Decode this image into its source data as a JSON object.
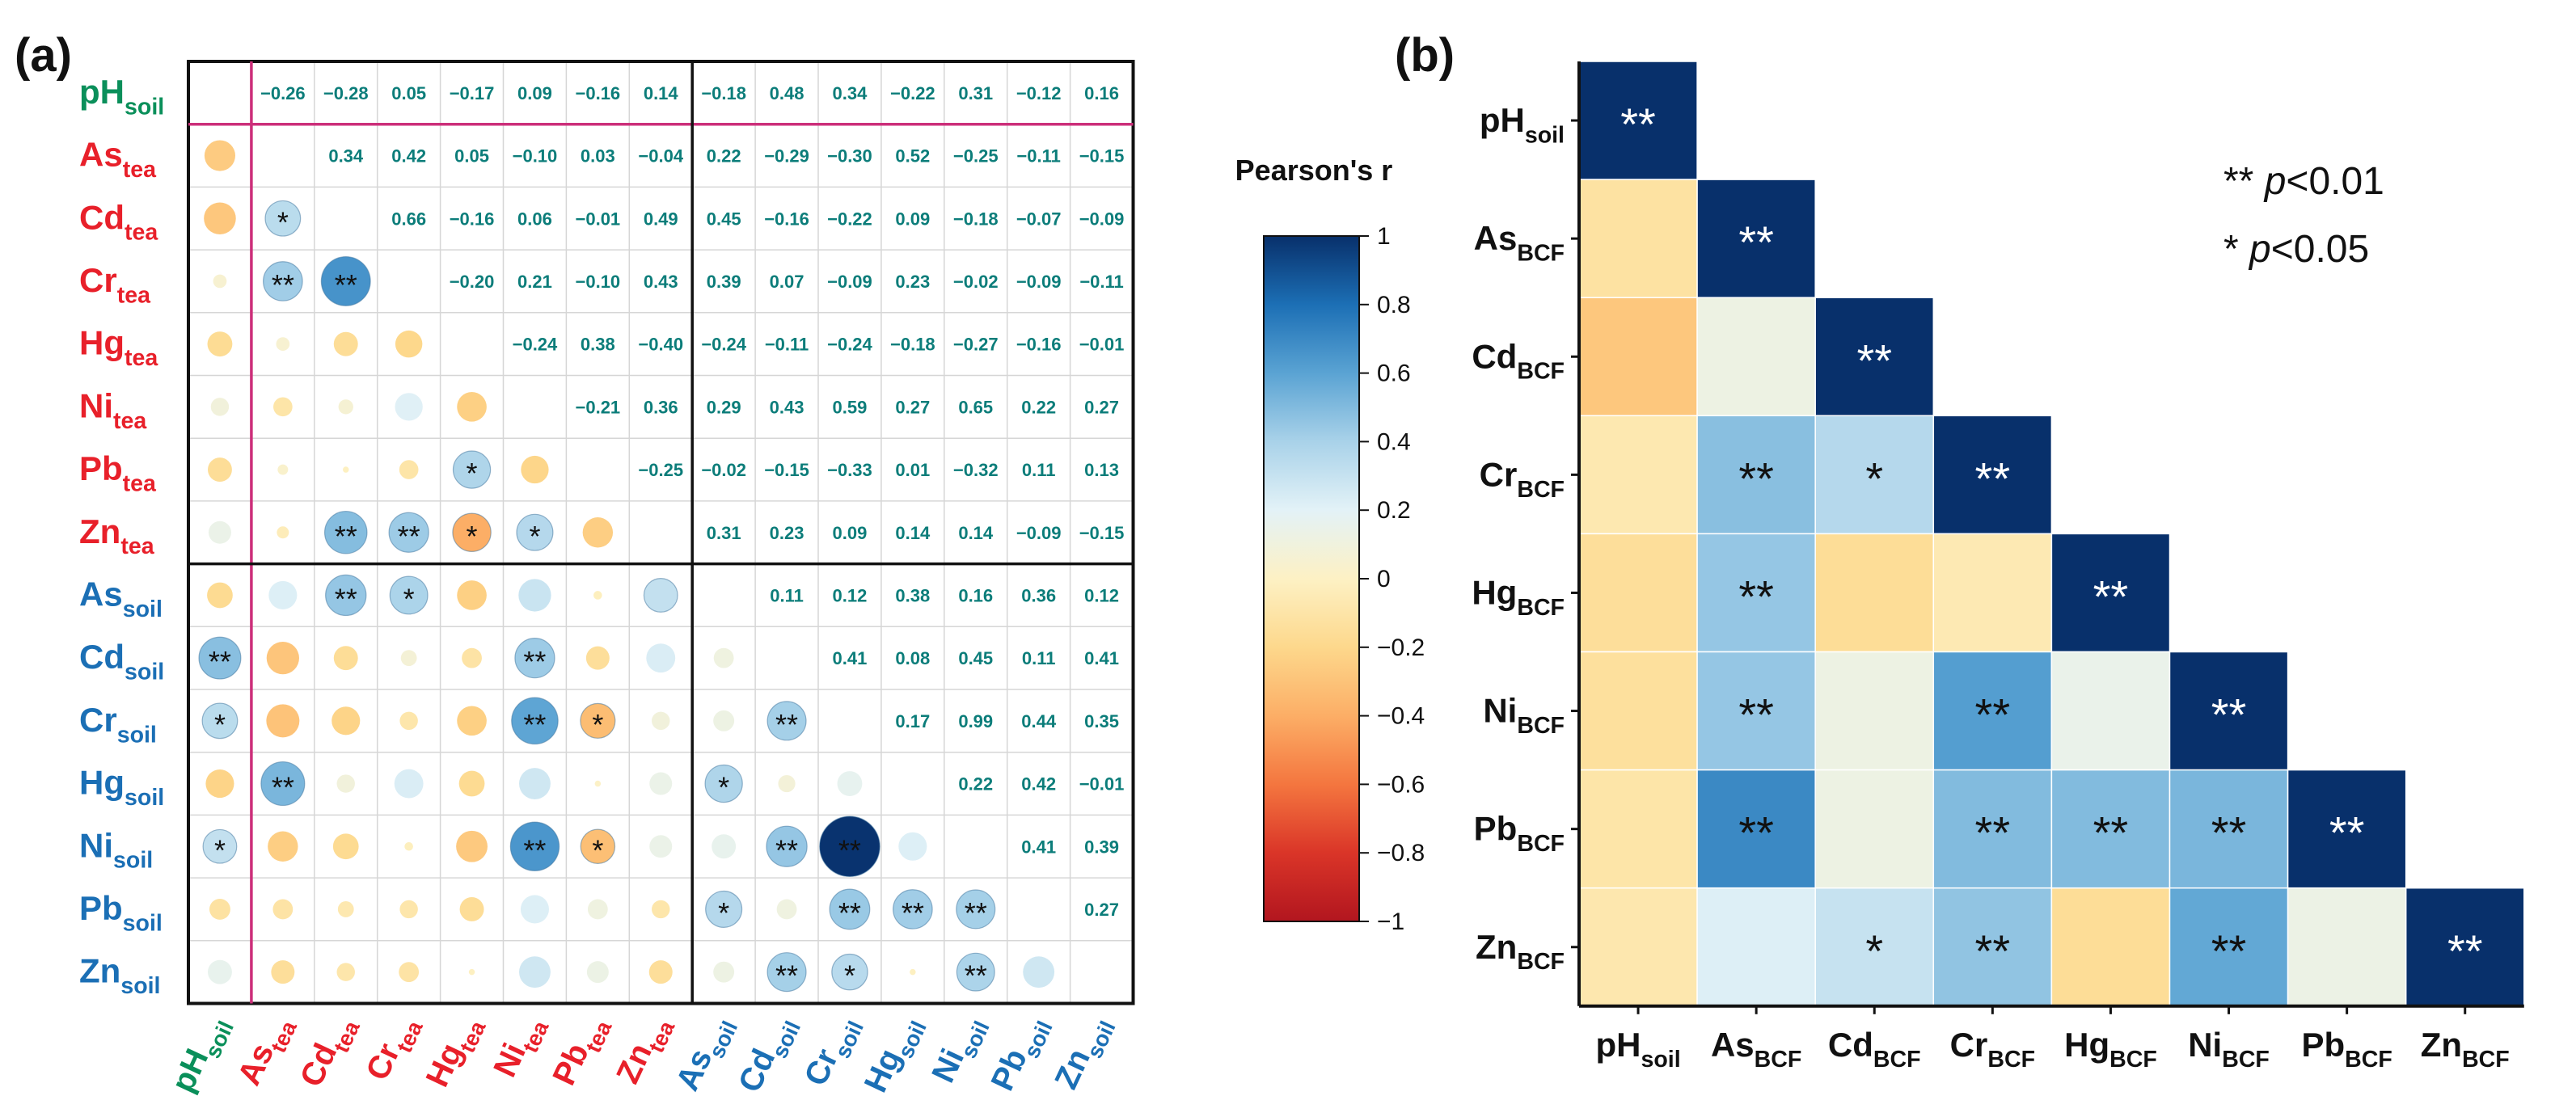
{
  "panel_a": {
    "label": "(a)",
    "variables": [
      {
        "base": "pH",
        "sub": "soil",
        "group": "ph"
      },
      {
        "base": "As",
        "sub": "tea",
        "group": "tea"
      },
      {
        "base": "Cd",
        "sub": "tea",
        "group": "tea"
      },
      {
        "base": "Cr",
        "sub": "tea",
        "group": "tea"
      },
      {
        "base": "Hg",
        "sub": "tea",
        "group": "tea"
      },
      {
        "base": "Ni",
        "sub": "tea",
        "group": "tea"
      },
      {
        "base": "Pb",
        "sub": "tea",
        "group": "tea"
      },
      {
        "base": "Zn",
        "sub": "tea",
        "group": "tea"
      },
      {
        "base": "As",
        "sub": "soil",
        "group": "soil"
      },
      {
        "base": "Cd",
        "sub": "soil",
        "group": "soil"
      },
      {
        "base": "Cr",
        "sub": "soil",
        "group": "soil"
      },
      {
        "base": "Hg",
        "sub": "soil",
        "group": "soil"
      },
      {
        "base": "Ni",
        "sub": "soil",
        "group": "soil"
      },
      {
        "base": "Pb",
        "sub": "soil",
        "group": "soil"
      },
      {
        "base": "Zn",
        "sub": "soil",
        "group": "soil"
      }
    ],
    "group_colors": {
      "ph": "#0a8f5a",
      "tea": "#e8202a",
      "soil": "#1b6fb5"
    },
    "value_text_color": "#0c7d7a",
    "frame_line_color": "#cc2f7a"
  },
  "chart_data": [
    {
      "type": "heatmap",
      "title": "(a)",
      "subtype": "correlation-matrix (upper triangle: Pearson's r values; lower triangle: circles sized/colored by r with significance marks)",
      "variables": [
        "pH_soil",
        "As_tea",
        "Cd_tea",
        "Cr_tea",
        "Hg_tea",
        "Ni_tea",
        "Pb_tea",
        "Zn_tea",
        "As_soil",
        "Cd_soil",
        "Cr_soil",
        "Hg_soil",
        "Ni_soil",
        "Pb_soil",
        "Zn_soil"
      ],
      "upper_values": [
        [
          null,
          "−0.26",
          "−0.28",
          "0.05",
          "−0.17",
          "0.09",
          "−0.16",
          "0.14",
          "−0.18",
          "0.48",
          "0.34",
          "−0.22",
          "0.31",
          "−0.12",
          "0.16"
        ],
        [
          null,
          null,
          "0.34",
          "0.42",
          "0.05",
          "−0.10",
          "0.03",
          "−0.04",
          "0.22",
          "−0.29",
          "−0.30",
          "0.52",
          "−0.25",
          "−0.11",
          "−0.15"
        ],
        [
          null,
          null,
          null,
          "0.66",
          "−0.16",
          "0.06",
          "−0.01",
          "0.49",
          "0.45",
          "−0.16",
          "−0.22",
          "0.09",
          "−0.18",
          "−0.07",
          "−0.09"
        ],
        [
          null,
          null,
          null,
          null,
          "−0.20",
          "0.21",
          "−0.10",
          "0.43",
          "0.39",
          "0.07",
          "−0.09",
          "0.23",
          "−0.02",
          "−0.09",
          "−0.11"
        ],
        [
          null,
          null,
          null,
          null,
          null,
          "−0.24",
          "0.38",
          "−0.40",
          "−0.24",
          "−0.11",
          "−0.24",
          "−0.18",
          "−0.27",
          "−0.16",
          "−0.01"
        ],
        [
          null,
          null,
          null,
          null,
          null,
          null,
          "−0.21",
          "0.36",
          "0.29",
          "0.43",
          "0.59",
          "0.27",
          "0.65",
          "0.22",
          "0.27"
        ],
        [
          null,
          null,
          null,
          null,
          null,
          null,
          null,
          "−0.25",
          "−0.02",
          "−0.15",
          "−0.33",
          "0.01",
          "−0.32",
          "0.11",
          "0.13"
        ],
        [
          null,
          null,
          null,
          null,
          null,
          null,
          null,
          null,
          "0.31",
          "0.23",
          "0.09",
          "0.14",
          "0.14",
          "−0.09",
          "−0.15"
        ],
        [
          null,
          null,
          null,
          null,
          null,
          null,
          null,
          null,
          null,
          "0.11",
          "0.12",
          "0.38",
          "0.16",
          "0.36",
          "0.12"
        ],
        [
          null,
          null,
          null,
          null,
          null,
          null,
          null,
          null,
          null,
          null,
          "0.41",
          "0.08",
          "0.45",
          "0.11",
          "0.41"
        ],
        [
          null,
          null,
          null,
          null,
          null,
          null,
          null,
          null,
          null,
          null,
          null,
          "0.17",
          "0.99",
          "0.44",
          "0.35"
        ],
        [
          null,
          null,
          null,
          null,
          null,
          null,
          null,
          null,
          null,
          null,
          null,
          null,
          "0.22",
          "0.42",
          "−0.01"
        ],
        [
          null,
          null,
          null,
          null,
          null,
          null,
          null,
          null,
          null,
          null,
          null,
          null,
          null,
          "0.41",
          "0.39"
        ],
        [
          null,
          null,
          null,
          null,
          null,
          null,
          null,
          null,
          null,
          null,
          null,
          null,
          null,
          null,
          "0.27"
        ],
        [
          null,
          null,
          null,
          null,
          null,
          null,
          null,
          null,
          null,
          null,
          null,
          null,
          null,
          null,
          null
        ]
      ],
      "lower_circles": [
        [],
        [
          [
            -0.26,
            ""
          ]
        ],
        [
          [
            -0.28,
            ""
          ],
          [
            0.34,
            "*"
          ]
        ],
        [
          [
            0.05,
            ""
          ],
          [
            0.42,
            "**"
          ],
          [
            0.66,
            "**"
          ]
        ],
        [
          [
            -0.17,
            ""
          ],
          [
            0.05,
            ""
          ],
          [
            -0.16,
            ""
          ],
          [
            -0.2,
            ""
          ]
        ],
        [
          [
            0.09,
            ""
          ],
          [
            -0.1,
            ""
          ],
          [
            0.06,
            ""
          ],
          [
            0.21,
            ""
          ],
          [
            -0.24,
            ""
          ]
        ],
        [
          [
            -0.16,
            ""
          ],
          [
            0.03,
            ""
          ],
          [
            -0.01,
            ""
          ],
          [
            -0.1,
            ""
          ],
          [
            0.38,
            "*"
          ],
          [
            -0.21,
            ""
          ]
        ],
        [
          [
            0.14,
            ""
          ],
          [
            -0.04,
            ""
          ],
          [
            0.49,
            "**"
          ],
          [
            0.43,
            "**"
          ],
          [
            -0.4,
            "*"
          ],
          [
            0.36,
            "*"
          ],
          [
            -0.25,
            ""
          ]
        ],
        [
          [
            -0.18,
            ""
          ],
          [
            0.22,
            ""
          ],
          [
            0.45,
            "**"
          ],
          [
            0.39,
            "*"
          ],
          [
            -0.24,
            ""
          ],
          [
            0.29,
            ""
          ],
          [
            -0.02,
            ""
          ],
          [
            0.31,
            ""
          ]
        ],
        [
          [
            0.48,
            "**"
          ],
          [
            -0.29,
            ""
          ],
          [
            -0.16,
            ""
          ],
          [
            0.07,
            ""
          ],
          [
            -0.11,
            ""
          ],
          [
            0.43,
            "**"
          ],
          [
            -0.15,
            ""
          ],
          [
            0.23,
            ""
          ],
          [
            0.11,
            ""
          ]
        ],
        [
          [
            0.34,
            "*"
          ],
          [
            -0.3,
            ""
          ],
          [
            -0.22,
            ""
          ],
          [
            -0.09,
            ""
          ],
          [
            -0.24,
            ""
          ],
          [
            0.59,
            "**"
          ],
          [
            -0.33,
            "*"
          ],
          [
            0.09,
            ""
          ],
          [
            0.12,
            ""
          ],
          [
            0.41,
            "**"
          ]
        ],
        [
          [
            -0.22,
            ""
          ],
          [
            0.52,
            "**"
          ],
          [
            0.09,
            ""
          ],
          [
            0.23,
            ""
          ],
          [
            -0.18,
            ""
          ],
          [
            0.27,
            ""
          ],
          [
            0.01,
            ""
          ],
          [
            0.14,
            ""
          ],
          [
            0.38,
            "*"
          ],
          [
            0.08,
            ""
          ],
          [
            0.17,
            ""
          ]
        ],
        [
          [
            0.31,
            "*"
          ],
          [
            -0.25,
            ""
          ],
          [
            -0.18,
            ""
          ],
          [
            -0.02,
            ""
          ],
          [
            -0.27,
            ""
          ],
          [
            0.65,
            "**"
          ],
          [
            -0.32,
            "*"
          ],
          [
            0.14,
            ""
          ],
          [
            0.16,
            ""
          ],
          [
            0.45,
            "**"
          ],
          [
            0.99,
            "**"
          ],
          [
            0.22,
            ""
          ]
        ],
        [
          [
            -0.12,
            ""
          ],
          [
            -0.11,
            ""
          ],
          [
            -0.07,
            ""
          ],
          [
            -0.09,
            ""
          ],
          [
            -0.16,
            ""
          ],
          [
            0.22,
            ""
          ],
          [
            0.11,
            ""
          ],
          [
            -0.09,
            ""
          ],
          [
            0.36,
            "*"
          ],
          [
            0.11,
            ""
          ],
          [
            0.44,
            "**"
          ],
          [
            0.42,
            "**"
          ],
          [
            0.41,
            "**"
          ]
        ],
        [
          [
            0.16,
            ""
          ],
          [
            -0.15,
            ""
          ],
          [
            -0.09,
            ""
          ],
          [
            -0.11,
            ""
          ],
          [
            -0.01,
            ""
          ],
          [
            0.27,
            ""
          ],
          [
            0.13,
            ""
          ],
          [
            -0.15,
            ""
          ],
          [
            0.12,
            ""
          ],
          [
            0.41,
            "**"
          ],
          [
            0.35,
            "*"
          ],
          [
            -0.01,
            ""
          ],
          [
            0.39,
            "**"
          ],
          [
            0.27,
            ""
          ]
        ]
      ],
      "group_separators": "after pH_soil (magenta); after Zn_tea (black)"
    },
    {
      "type": "heatmap",
      "title": "Pearson's r",
      "subtype": "colorbar",
      "ticks": [
        "1",
        "0.8",
        "0.6",
        "0.4",
        "0.2",
        "0",
        "−0.2",
        "−0.4",
        "−0.6",
        "−0.8",
        "−1"
      ],
      "tick_values": [
        1,
        0.8,
        0.6,
        0.4,
        0.2,
        0,
        -0.2,
        -0.4,
        -0.6,
        -0.8,
        -1
      ],
      "ylim": [
        -1,
        1
      ],
      "colors_high_to_low": [
        "#08306b",
        "#1c6fb5",
        "#5aa3d3",
        "#a9d2e9",
        "#e3f2f7",
        "#fdf1c4",
        "#fdd88c",
        "#fcae66",
        "#f4763f",
        "#da3528",
        "#b2161f"
      ]
    },
    {
      "type": "heatmap",
      "title": "(b)",
      "subtype": "lower-triangular correlation heatmap",
      "variables": [
        {
          "base": "pH",
          "sub": "soil"
        },
        {
          "base": "As",
          "sub": "BCF"
        },
        {
          "base": "Cd",
          "sub": "BCF"
        },
        {
          "base": "Cr",
          "sub": "BCF"
        },
        {
          "base": "Hg",
          "sub": "BCF"
        },
        {
          "base": "Ni",
          "sub": "BCF"
        },
        {
          "base": "Pb",
          "sub": "BCF"
        },
        {
          "base": "Zn",
          "sub": "BCF"
        }
      ],
      "cells": [
        [
          [
            1.0,
            "**"
          ]
        ],
        [
          [
            -0.12,
            ""
          ],
          [
            1.0,
            "**"
          ]
        ],
        [
          [
            -0.28,
            ""
          ],
          [
            0.12,
            ""
          ],
          [
            1.0,
            "**"
          ]
        ],
        [
          [
            -0.07,
            ""
          ],
          [
            0.48,
            "**"
          ],
          [
            0.36,
            "*"
          ],
          [
            1.0,
            "**"
          ]
        ],
        [
          [
            -0.15,
            ""
          ],
          [
            0.45,
            "**"
          ],
          [
            -0.16,
            ""
          ],
          [
            -0.06,
            ""
          ],
          [
            1.0,
            "**"
          ]
        ],
        [
          [
            -0.14,
            ""
          ],
          [
            0.45,
            "**"
          ],
          [
            0.12,
            ""
          ],
          [
            0.62,
            "**"
          ],
          [
            0.15,
            ""
          ],
          [
            1.0,
            "**"
          ]
        ],
        [
          [
            -0.1,
            ""
          ],
          [
            0.7,
            "**"
          ],
          [
            0.12,
            ""
          ],
          [
            0.5,
            "**"
          ],
          [
            0.5,
            "**"
          ],
          [
            0.52,
            "**"
          ],
          [
            1.0,
            "**"
          ]
        ],
        [
          [
            -0.08,
            ""
          ],
          [
            0.22,
            ""
          ],
          [
            0.3,
            "*"
          ],
          [
            0.46,
            "**"
          ],
          [
            -0.16,
            ""
          ],
          [
            0.58,
            "**"
          ],
          [
            0.13,
            ""
          ],
          [
            1.0,
            "**"
          ]
        ]
      ],
      "legend": [
        {
          "stars": "**",
          "p": "p",
          "rest": "<0.01"
        },
        {
          "stars": "*",
          "p": "p",
          "rest": "<0.05"
        }
      ]
    }
  ]
}
